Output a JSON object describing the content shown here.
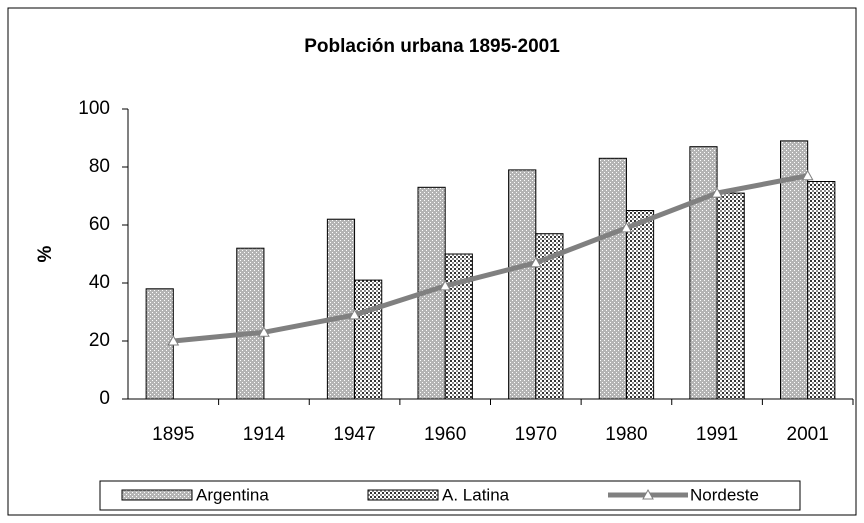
{
  "chart_data": {
    "type": "bar",
    "title": "Población urbana  1895-2001",
    "y_label": "%",
    "categories": [
      "1895",
      "1914",
      "1947",
      "1960",
      "1970",
      "1980",
      "1991",
      "2001"
    ],
    "series": [
      {
        "name": "Argentina",
        "type": "bar",
        "color": "#b4b4b4",
        "values": [
          38,
          52,
          62,
          73,
          79,
          83,
          87,
          89
        ]
      },
      {
        "name": "A. Latina",
        "type": "bar",
        "color": "#8c8c8c",
        "values": [
          null,
          null,
          41,
          50,
          57,
          65,
          71,
          75
        ]
      },
      {
        "name": "Nordeste",
        "type": "line",
        "color": "#808080",
        "values": [
          20,
          23,
          29,
          39,
          47,
          59,
          71,
          77
        ]
      }
    ],
    "ylim": [
      0,
      100
    ],
    "yticks": [
      0,
      20,
      40,
      60,
      80,
      100
    ],
    "grid": false,
    "legend": "bottom"
  }
}
